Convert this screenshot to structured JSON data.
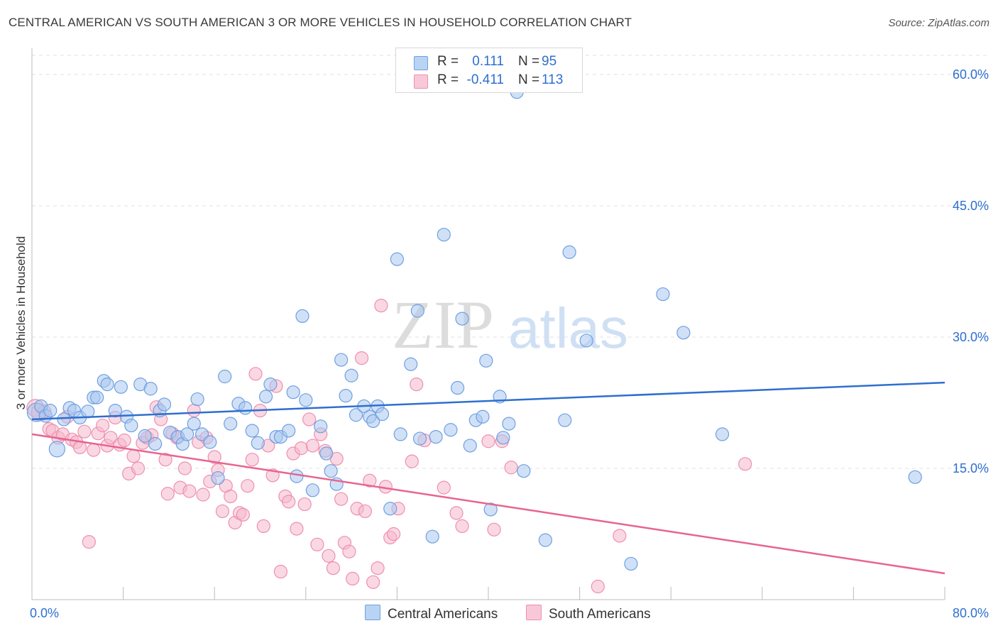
{
  "header": {
    "title": "CENTRAL AMERICAN VS SOUTH AMERICAN 3 OR MORE VEHICLES IN HOUSEHOLD CORRELATION CHART",
    "source": "Source: ZipAtlas.com"
  },
  "watermark": {
    "zip": "ZIP",
    "atlas": "atlas"
  },
  "legend": {
    "r_label": "R =",
    "n_label": "N =",
    "rows": [
      {
        "r": "0.111",
        "n": "95"
      },
      {
        "r": "-0.411",
        "n": "113"
      }
    ]
  },
  "bottom_legend": {
    "items": [
      {
        "label": "Central Americans"
      },
      {
        "label": "South Americans"
      }
    ]
  },
  "colors": {
    "blue_fill": "#a9c8f0",
    "blue_stroke": "#6f9fe0",
    "blue_line": "#2e6fd0",
    "pink_fill": "#f6b8cc",
    "pink_stroke": "#ee8fae",
    "pink_line": "#e8648f",
    "axis_text": "#2e6fd0",
    "grid": "#e0e0e0"
  },
  "chart_data": {
    "type": "scatter",
    "title": "CENTRAL AMERICAN VS SOUTH AMERICAN 3 OR MORE VEHICLES IN HOUSEHOLD CORRELATION CHART",
    "xlabel": "",
    "ylabel": "3 or more Vehicles in Household",
    "xlim": [
      0,
      80
    ],
    "ylim": [
      0,
      63
    ],
    "x_tick_labels": [
      "0.0%",
      "80.0%"
    ],
    "y_ticks": [
      15,
      30,
      45,
      60
    ],
    "y_tick_labels": [
      "15.0%",
      "30.0%",
      "45.0%",
      "60.0%"
    ],
    "grid": true,
    "legend_position": "top-center",
    "series": [
      {
        "name": "Central Americans",
        "R": 0.111,
        "N": 95,
        "trend": {
          "x": [
            0,
            80
          ],
          "y": [
            20.6,
            24.8
          ]
        },
        "points": [
          [
            0.4,
            21.4
          ],
          [
            0.8,
            22.1
          ],
          [
            1.2,
            21.0
          ],
          [
            1.6,
            21.6
          ],
          [
            2.2,
            17.2
          ],
          [
            2.8,
            20.6
          ],
          [
            3.3,
            21.9
          ],
          [
            3.7,
            21.6
          ],
          [
            4.2,
            20.8
          ],
          [
            4.9,
            21.5
          ],
          [
            5.4,
            23.1
          ],
          [
            5.7,
            23.1
          ],
          [
            6.3,
            25.0
          ],
          [
            6.6,
            24.6
          ],
          [
            7.3,
            21.6
          ],
          [
            7.8,
            24.3
          ],
          [
            8.3,
            20.9
          ],
          [
            8.7,
            19.9
          ],
          [
            9.5,
            24.6
          ],
          [
            9.9,
            18.7
          ],
          [
            10.4,
            24.1
          ],
          [
            10.8,
            17.8
          ],
          [
            11.2,
            21.6
          ],
          [
            11.6,
            22.3
          ],
          [
            12.1,
            19.1
          ],
          [
            12.8,
            18.6
          ],
          [
            13.2,
            17.8
          ],
          [
            13.6,
            18.9
          ],
          [
            14.2,
            20.1
          ],
          [
            14.5,
            22.9
          ],
          [
            14.9,
            18.9
          ],
          [
            15.6,
            18.0
          ],
          [
            16.3,
            13.9
          ],
          [
            16.9,
            25.5
          ],
          [
            17.4,
            20.1
          ],
          [
            18.1,
            22.4
          ],
          [
            18.7,
            21.9
          ],
          [
            19.3,
            19.3
          ],
          [
            19.8,
            17.9
          ],
          [
            20.5,
            23.2
          ],
          [
            20.9,
            24.6
          ],
          [
            21.4,
            18.6
          ],
          [
            21.8,
            18.6
          ],
          [
            22.5,
            19.3
          ],
          [
            22.9,
            23.7
          ],
          [
            23.2,
            14.1
          ],
          [
            23.7,
            32.4
          ],
          [
            24.0,
            22.8
          ],
          [
            24.6,
            12.5
          ],
          [
            25.3,
            19.8
          ],
          [
            25.8,
            16.7
          ],
          [
            26.2,
            14.7
          ],
          [
            26.7,
            13.2
          ],
          [
            27.1,
            27.4
          ],
          [
            27.5,
            23.3
          ],
          [
            28.0,
            25.6
          ],
          [
            28.4,
            21.1
          ],
          [
            29.1,
            22.1
          ],
          [
            29.6,
            20.9
          ],
          [
            29.9,
            20.4
          ],
          [
            30.3,
            22.1
          ],
          [
            30.7,
            21.2
          ],
          [
            31.4,
            10.4
          ],
          [
            32.0,
            38.9
          ],
          [
            32.3,
            18.9
          ],
          [
            33.2,
            26.9
          ],
          [
            33.8,
            33.0
          ],
          [
            34.0,
            18.4
          ],
          [
            35.1,
            7.2
          ],
          [
            35.4,
            18.6
          ],
          [
            36.1,
            41.7
          ],
          [
            36.7,
            19.4
          ],
          [
            37.3,
            24.2
          ],
          [
            37.7,
            32.1
          ],
          [
            38.4,
            17.6
          ],
          [
            38.9,
            20.5
          ],
          [
            39.5,
            20.9
          ],
          [
            39.8,
            27.3
          ],
          [
            40.2,
            10.3
          ],
          [
            41.0,
            23.2
          ],
          [
            41.3,
            18.5
          ],
          [
            41.8,
            20.1
          ],
          [
            42.5,
            58.0
          ],
          [
            43.1,
            14.7
          ],
          [
            45.0,
            6.8
          ],
          [
            46.7,
            20.5
          ],
          [
            47.1,
            39.7
          ],
          [
            48.6,
            29.6
          ],
          [
            52.5,
            4.1
          ],
          [
            55.3,
            34.9
          ],
          [
            57.1,
            30.5
          ],
          [
            60.5,
            18.9
          ],
          [
            77.4,
            14.0
          ]
        ]
      },
      {
        "name": "South Americans",
        "R": -0.411,
        "N": 113,
        "trend": {
          "x": [
            0,
            80
          ],
          "y": [
            18.9,
            3.0
          ]
        },
        "points": [
          [
            0.3,
            21.9
          ],
          [
            0.7,
            21.4
          ],
          [
            1.1,
            21.5
          ],
          [
            1.5,
            19.5
          ],
          [
            1.8,
            19.3
          ],
          [
            2.3,
            18.5
          ],
          [
            2.7,
            18.9
          ],
          [
            3.1,
            20.9
          ],
          [
            3.5,
            18.3
          ],
          [
            3.9,
            18.0
          ],
          [
            4.2,
            17.4
          ],
          [
            4.6,
            19.2
          ],
          [
            5.0,
            6.6
          ],
          [
            5.4,
            17.1
          ],
          [
            5.8,
            19.0
          ],
          [
            6.2,
            19.9
          ],
          [
            6.6,
            17.6
          ],
          [
            6.9,
            18.5
          ],
          [
            7.3,
            20.8
          ],
          [
            7.7,
            17.7
          ],
          [
            8.1,
            18.2
          ],
          [
            8.5,
            14.4
          ],
          [
            8.9,
            16.4
          ],
          [
            9.3,
            15.0
          ],
          [
            9.7,
            17.9
          ],
          [
            10.1,
            18.5
          ],
          [
            10.5,
            18.8
          ],
          [
            10.9,
            22.0
          ],
          [
            11.3,
            20.6
          ],
          [
            11.7,
            16.0
          ],
          [
            11.9,
            12.1
          ],
          [
            12.3,
            19.0
          ],
          [
            12.7,
            18.5
          ],
          [
            13.0,
            12.8
          ],
          [
            13.4,
            15.0
          ],
          [
            13.8,
            12.4
          ],
          [
            14.2,
            21.6
          ],
          [
            14.6,
            18.0
          ],
          [
            15.0,
            12.0
          ],
          [
            15.3,
            18.5
          ],
          [
            15.6,
            13.5
          ],
          [
            16.0,
            16.3
          ],
          [
            16.3,
            14.8
          ],
          [
            16.7,
            10.1
          ],
          [
            17.0,
            13.0
          ],
          [
            17.4,
            11.8
          ],
          [
            17.8,
            8.8
          ],
          [
            18.2,
            9.9
          ],
          [
            18.5,
            9.7
          ],
          [
            18.9,
            13.0
          ],
          [
            19.3,
            16.0
          ],
          [
            19.6,
            25.8
          ],
          [
            20.0,
            21.6
          ],
          [
            20.3,
            8.4
          ],
          [
            20.7,
            17.6
          ],
          [
            21.1,
            14.2
          ],
          [
            21.4,
            24.4
          ],
          [
            21.8,
            3.2
          ],
          [
            22.2,
            11.8
          ],
          [
            22.5,
            11.2
          ],
          [
            22.9,
            16.7
          ],
          [
            23.2,
            8.1
          ],
          [
            23.6,
            17.3
          ],
          [
            23.9,
            10.9
          ],
          [
            24.3,
            20.6
          ],
          [
            24.6,
            17.6
          ],
          [
            25.0,
            6.3
          ],
          [
            25.3,
            18.9
          ],
          [
            25.7,
            17.0
          ],
          [
            26.0,
            5.0
          ],
          [
            26.4,
            3.6
          ],
          [
            26.7,
            16.1
          ],
          [
            27.1,
            11.5
          ],
          [
            27.4,
            6.5
          ],
          [
            27.8,
            5.5
          ],
          [
            28.1,
            2.4
          ],
          [
            28.5,
            10.4
          ],
          [
            28.9,
            27.6
          ],
          [
            29.2,
            10.1
          ],
          [
            29.6,
            13.6
          ],
          [
            29.9,
            2.0
          ],
          [
            30.3,
            3.6
          ],
          [
            30.6,
            33.6
          ],
          [
            31.0,
            12.9
          ],
          [
            31.4,
            7.1
          ],
          [
            31.7,
            7.5
          ],
          [
            32.1,
            10.4
          ],
          [
            33.3,
            15.8
          ],
          [
            33.7,
            24.6
          ],
          [
            34.4,
            18.2
          ],
          [
            36.1,
            12.8
          ],
          [
            37.2,
            9.9
          ],
          [
            37.7,
            8.4
          ],
          [
            40.0,
            18.1
          ],
          [
            40.5,
            8.0
          ],
          [
            41.2,
            18.1
          ],
          [
            42.0,
            15.1
          ],
          [
            49.6,
            1.5
          ],
          [
            51.5,
            7.3
          ],
          [
            62.5,
            15.5
          ]
        ]
      }
    ]
  }
}
